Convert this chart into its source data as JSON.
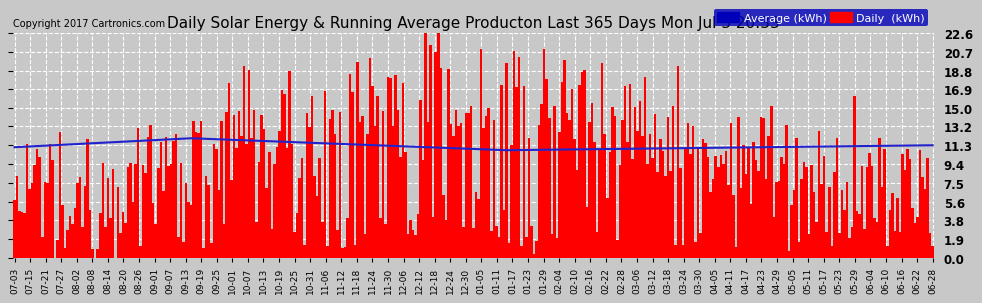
{
  "title": "Daily Solar Energy & Running Average Producton Last 365 Days Mon Jul 3 20:33",
  "copyright": "Copyright 2017 Cartronics.com",
  "yticks": [
    0.0,
    1.9,
    3.8,
    5.6,
    7.5,
    9.4,
    11.3,
    13.2,
    15.0,
    16.9,
    18.8,
    20.7,
    22.6
  ],
  "ymax": 22.6,
  "bar_color": "#ff0000",
  "avg_color": "#2222cc",
  "bg_color": "#c8c8c8",
  "plot_bg_color": "#c8c8c8",
  "grid_color": "#ffffff",
  "legend_avg_bg": "#0000bb",
  "legend_daily_bg": "#ff0000",
  "title_fontsize": 11,
  "n_days": 365,
  "xtick_labels": [
    "07-03",
    "07-15",
    "07-21",
    "07-27",
    "08-02",
    "08-08",
    "08-14",
    "08-20",
    "08-26",
    "09-01",
    "09-07",
    "09-13",
    "09-19",
    "09-25",
    "10-01",
    "10-07",
    "10-13",
    "10-19",
    "10-25",
    "10-31",
    "11-06",
    "11-12",
    "11-18",
    "11-24",
    "11-30",
    "12-06",
    "12-12",
    "12-18",
    "12-24",
    "12-30",
    "01-05",
    "01-11",
    "01-17",
    "01-23",
    "01-29",
    "02-04",
    "02-10",
    "02-16",
    "02-22",
    "02-28",
    "03-06",
    "03-12",
    "03-18",
    "03-24",
    "03-30",
    "04-05",
    "04-11",
    "04-17",
    "04-23",
    "04-29",
    "05-05",
    "05-11",
    "05-17",
    "05-23",
    "05-29",
    "06-04",
    "06-10",
    "06-16",
    "06-22",
    "06-28"
  ]
}
